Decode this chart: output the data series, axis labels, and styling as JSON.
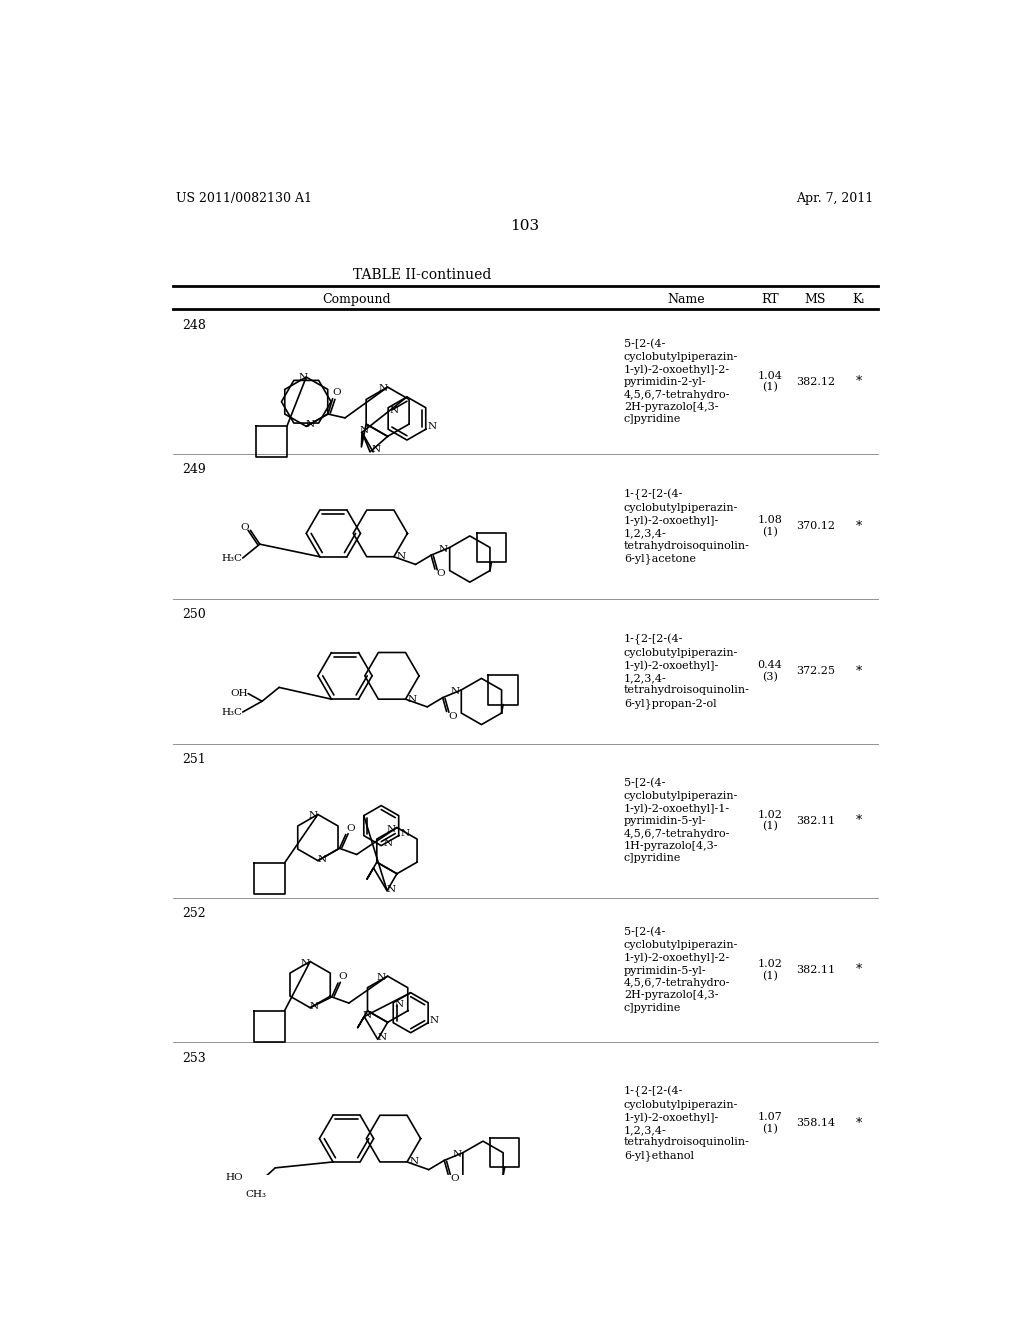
{
  "page_number": "103",
  "patent_number": "US 2011/0082130 A1",
  "patent_date": "Apr. 7, 2011",
  "table_title": "TABLE II-continued",
  "background_color": "#ffffff",
  "compounds": [
    {
      "number": "248",
      "rt": "1.04\n(1)",
      "ms": "382.12",
      "ki": "*",
      "name": "5-[2-(4-\ncyclobutylpiperazin-\n1-yl)-2-oxoethyl]-2-\npyrimidin-2-yl-\n4,5,6,7-tetrahydro-\n2H-pyrazolo[4,3-\nc]pyridine"
    },
    {
      "number": "249",
      "rt": "1.08\n(1)",
      "ms": "370.12",
      "ki": "*",
      "name": "1-{2-[2-(4-\ncyclobutylpiperazin-\n1-yl)-2-oxoethyl]-\n1,2,3,4-\ntetrahydroisoquinolin-\n6-yl}acetone"
    },
    {
      "number": "250",
      "rt": "0.44\n(3)",
      "ms": "372.25",
      "ki": "*",
      "name": "1-{2-[2-(4-\ncyclobutylpiperazin-\n1-yl)-2-oxoethyl]-\n1,2,3,4-\ntetrahydroisoquinolin-\n6-yl}propan-2-ol"
    },
    {
      "number": "251",
      "rt": "1.02\n(1)",
      "ms": "382.11",
      "ki": "*",
      "name": "5-[2-(4-\ncyclobutylpiperazin-\n1-yl)-2-oxoethyl]-1-\npyrimidin-5-yl-\n4,5,6,7-tetrahydro-\n1H-pyrazolo[4,3-\nc]pyridine"
    },
    {
      "number": "252",
      "rt": "1.02\n(1)",
      "ms": "382.11",
      "ki": "*",
      "name": "5-[2-(4-\ncyclobutylpiperazin-\n1-yl)-2-oxoethyl]-2-\npyrimidin-5-yl-\n4,5,6,7-tetrahydro-\n2H-pyrazolo[4,3-\nc]pyridine"
    },
    {
      "number": "253",
      "rt": "1.07\n(1)",
      "ms": "358.14",
      "ki": "*",
      "name": "1-{2-[2-(4-\ncyclobutylpiperazin-\n1-yl)-2-oxoethyl]-\n1,2,3,4-\ntetrahydroisoquinolin-\n6-yl}ethanol"
    }
  ]
}
